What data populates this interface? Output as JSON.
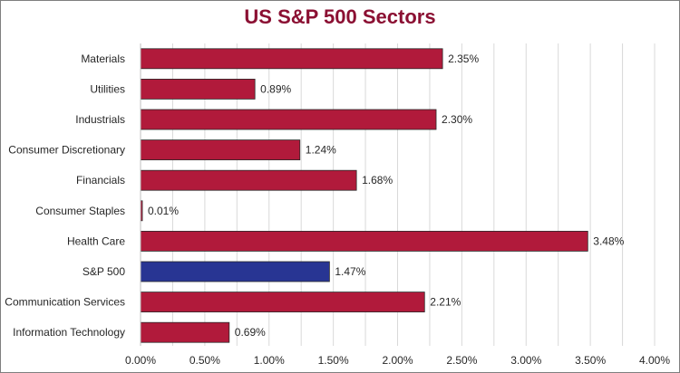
{
  "chart_data": {
    "type": "bar",
    "orientation": "horizontal",
    "title": "US S&P 500 Sectors",
    "xlabel": "",
    "ylabel": "",
    "categories": [
      "Materials",
      "Utilities",
      "Industrials",
      "Consumer Discretionary",
      "Financials",
      "Consumer Staples",
      "Health Care",
      "S&P 500",
      "Communication Services",
      "Information Technology"
    ],
    "values": [
      0.0235,
      0.0089,
      0.023,
      0.0124,
      0.0168,
      0.0001,
      0.0348,
      0.0147,
      0.0221,
      0.0069
    ],
    "value_labels": [
      "2.35%",
      "0.89%",
      "2.30%",
      "1.24%",
      "1.68%",
      "0.01%",
      "3.48%",
      "1.47%",
      "2.21%",
      "0.69%"
    ],
    "highlight_category": "S&P 500",
    "xlim": [
      0,
      0.04
    ],
    "xticks": [
      0,
      0.005,
      0.01,
      0.015,
      0.02,
      0.025,
      0.03,
      0.035,
      0.04
    ],
    "xtick_labels": [
      "0.00%",
      "0.50%",
      "1.00%",
      "1.50%",
      "2.00%",
      "2.50%",
      "3.00%",
      "3.50%",
      "4.00%"
    ],
    "grid": true,
    "legend": "none",
    "colors": {
      "bar": "#b11a3b",
      "highlight_bar": "#283593",
      "bar_edge": "#2a2a2a",
      "title": "#8b1033",
      "grid": "#d9d9d9"
    }
  }
}
